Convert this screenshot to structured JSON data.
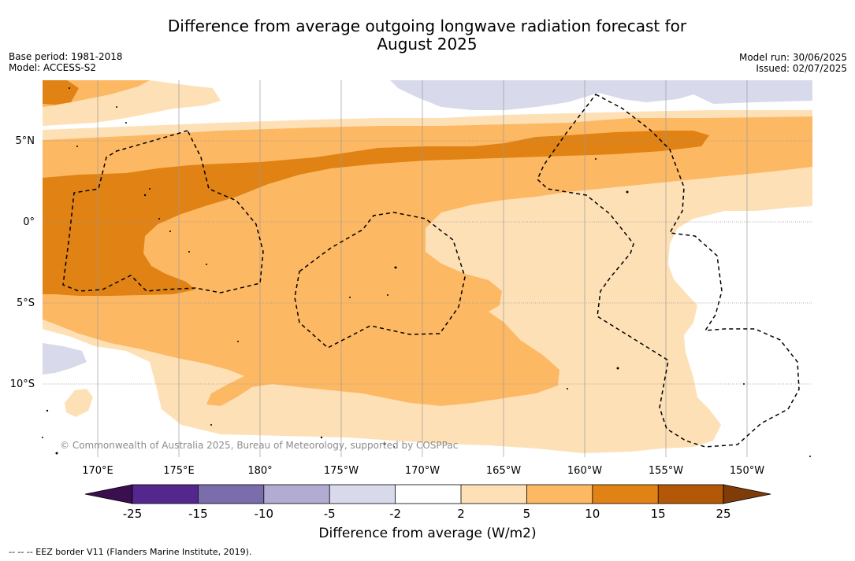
{
  "title_line1": "Difference from average outgoing longwave radiation forecast for",
  "title_line2": "August 2025",
  "left_info": {
    "base_period": "Base period: 1981-2018",
    "model": "Model: ACCESS-S2"
  },
  "right_info": {
    "model_run": "Model run: 30/06/2025",
    "issued": "Issued: 02/07/2025"
  },
  "lat_labels": [
    "5°N",
    "0°",
    "5°S",
    "10°S"
  ],
  "lon_labels": [
    "170°E",
    "175°E",
    "180°",
    "175°W",
    "170°W",
    "165°W",
    "160°W",
    "155°W",
    "150°W"
  ],
  "credit": "© Commonwealth of Australia 2025, Bureau of Meteorology, supported by COSPPac",
  "colorbar": {
    "title": "Difference from average (W/m2)",
    "ticks": [
      "-25",
      "-15",
      "-10",
      "-5",
      "-2",
      "2",
      "5",
      "10",
      "15",
      "25"
    ],
    "colors": [
      "#3b0f4f",
      "#54278f",
      "#7b6cab",
      "#b2abd2",
      "#d8daeb",
      "#ffffff",
      "#fee0b6",
      "#fdb863",
      "#e08214",
      "#b35806",
      "#7f3b08"
    ]
  },
  "legend_footer": "--  --  -- EEZ border V11 (Flanders Marine Institute, 2019)."
}
